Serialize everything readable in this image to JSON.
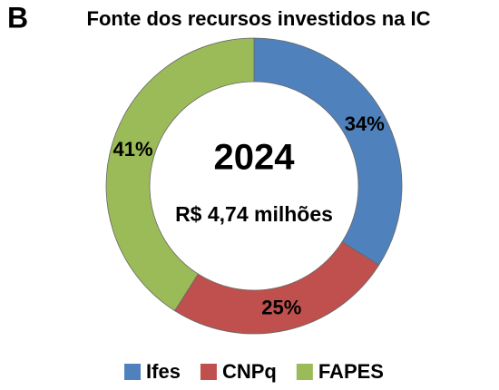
{
  "chart_data": {
    "type": "donut",
    "panel_label": "B",
    "title": "Fonte dos recursos investidos na IC",
    "center_title": "2024",
    "center_subtitle": "R$ 4,74 milhões",
    "categories": [
      "Ifes",
      "CNPq",
      "FAPES"
    ],
    "values": [
      34,
      25,
      41
    ],
    "value_labels": [
      "34%",
      "25%",
      "41%"
    ],
    "colors": [
      "#4f81bd",
      "#c0504d",
      "#9bbb59"
    ],
    "legend": "bottom"
  }
}
